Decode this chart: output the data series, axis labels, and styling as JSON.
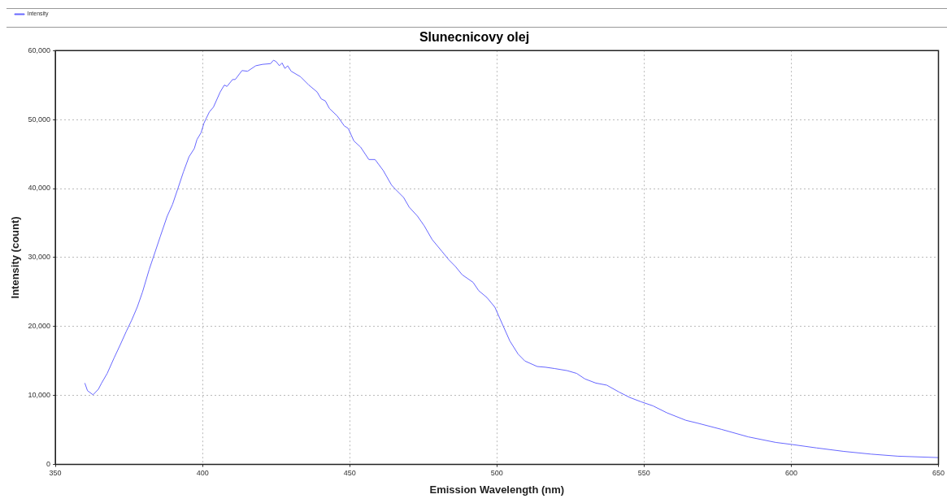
{
  "chart_data": {
    "type": "line",
    "title": "Slunecnicovy olej",
    "xlabel": "Emission Wavelength (nm)",
    "ylabel": "Intensity (count)",
    "xlim": [
      350,
      650
    ],
    "xticks": [
      350,
      400,
      450,
      500,
      550,
      600,
      650
    ],
    "ylim": [
      0,
      60000
    ],
    "yticks": [
      {
        "value": 0,
        "label": "0"
      },
      {
        "value": 10000,
        "label": "10,000"
      },
      {
        "value": 20000,
        "label": "20,000"
      },
      {
        "value": 30000,
        "label": "30,000"
      },
      {
        "value": 40000,
        "label": "40,000"
      },
      {
        "value": 50000,
        "label": "50,000"
      },
      {
        "value": 60000,
        "label": "60,000"
      }
    ],
    "grid": true,
    "legend": "top left",
    "marker": "none",
    "line_style": "solid",
    "series": [
      {
        "name": "Intensity",
        "color": "#6666ff",
        "x": [
          360,
          360.9,
          362.8,
          364.6,
          365.7,
          367.6,
          369.9,
          372.2,
          374.1,
          375.9,
          377.8,
          379.6,
          381.9,
          383.8,
          385.6,
          388,
          389.8,
          391.7,
          393.5,
          395.4,
          397.2,
          398.1,
          399.5,
          400.5,
          402.3,
          403.7,
          406,
          407.4,
          408.3,
          410.2,
          411.1,
          413.4,
          415.3,
          418.1,
          420.4,
          423.1,
          424.1,
          425,
          426.1,
          427,
          428,
          428.9,
          430.1,
          433.3,
          436.1,
          438.9,
          440.3,
          441.7,
          443.1,
          445.8,
          448.1,
          449.5,
          451.4,
          453.7,
          456.5,
          458.6,
          461.4,
          464.2,
          465.5,
          468.3,
          470.2,
          473,
          475.3,
          478,
          481.3,
          483.6,
          485.9,
          488.2,
          491.9,
          493.8,
          496.6,
          499.3,
          502.1,
          504.4,
          507.2,
          509.5,
          513.7,
          516.5,
          519.7,
          523.9,
          527.1,
          529.9,
          533.6,
          537.3,
          541.5,
          545.2,
          548.9,
          553,
          557.7,
          564.2,
          568.1,
          576.2,
          585.4,
          594.7,
          600.2,
          608.6,
          617.8,
          627.1,
          636.3,
          650
        ],
        "values": [
          11800,
          10700,
          10100,
          10900,
          11800,
          13200,
          15400,
          17500,
          19300,
          20900,
          22800,
          25000,
          28300,
          30700,
          33000,
          36000,
          37700,
          40100,
          42400,
          44600,
          45800,
          47100,
          48100,
          49500,
          51100,
          51800,
          54000,
          55000,
          54800,
          55800,
          55800,
          57100,
          57000,
          57800,
          58000,
          58100,
          58600,
          58400,
          57800,
          58200,
          57400,
          57800,
          57000,
          56200,
          55000,
          54000,
          53000,
          52700,
          51600,
          50500,
          49100,
          48700,
          46900,
          46000,
          44200,
          44200,
          42600,
          40500,
          39900,
          38700,
          37300,
          36000,
          34600,
          32600,
          30900,
          29700,
          28700,
          27500,
          26400,
          25200,
          24200,
          22800,
          20100,
          17900,
          16000,
          15000,
          14200,
          14100,
          13900,
          13600,
          13200,
          12400,
          11800,
          11500,
          10500,
          9700,
          9100,
          8500,
          7500,
          6400,
          6000,
          5100,
          4000,
          3200,
          2900,
          2400,
          1900,
          1500,
          1200,
          1000
        ]
      }
    ]
  }
}
